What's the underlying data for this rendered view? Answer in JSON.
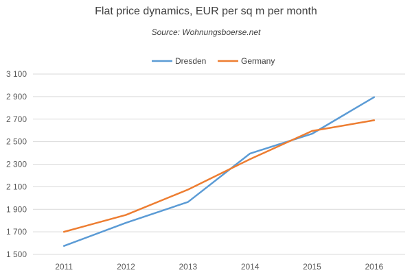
{
  "chart_data": {
    "type": "line",
    "title": "Flat price dynamics, EUR  per sq  m per month",
    "subtitle": "Source: Wohnungsboerse.net",
    "xlabel": "",
    "ylabel": "",
    "x": [
      "2011",
      "2012",
      "2013",
      "2014",
      "2015",
      "2016"
    ],
    "ylim": [
      1500,
      3100
    ],
    "yticks": [
      1500,
      1700,
      1900,
      2100,
      2300,
      2500,
      2700,
      2900,
      3100
    ],
    "ytick_labels": [
      "1 500",
      "1 700",
      "1 900",
      "2 100",
      "2 300",
      "2 500",
      "2 700",
      "2 900",
      "3 100"
    ],
    "grid": true,
    "legend_position": "top-center",
    "series": [
      {
        "name": "Dresden",
        "color": "#5b9bd5",
        "values": [
          1575,
          1780,
          1965,
          2395,
          2570,
          2895
        ]
      },
      {
        "name": "Germany",
        "color": "#ed7d31",
        "values": [
          1700,
          1850,
          2075,
          2345,
          2595,
          2690
        ]
      }
    ]
  }
}
